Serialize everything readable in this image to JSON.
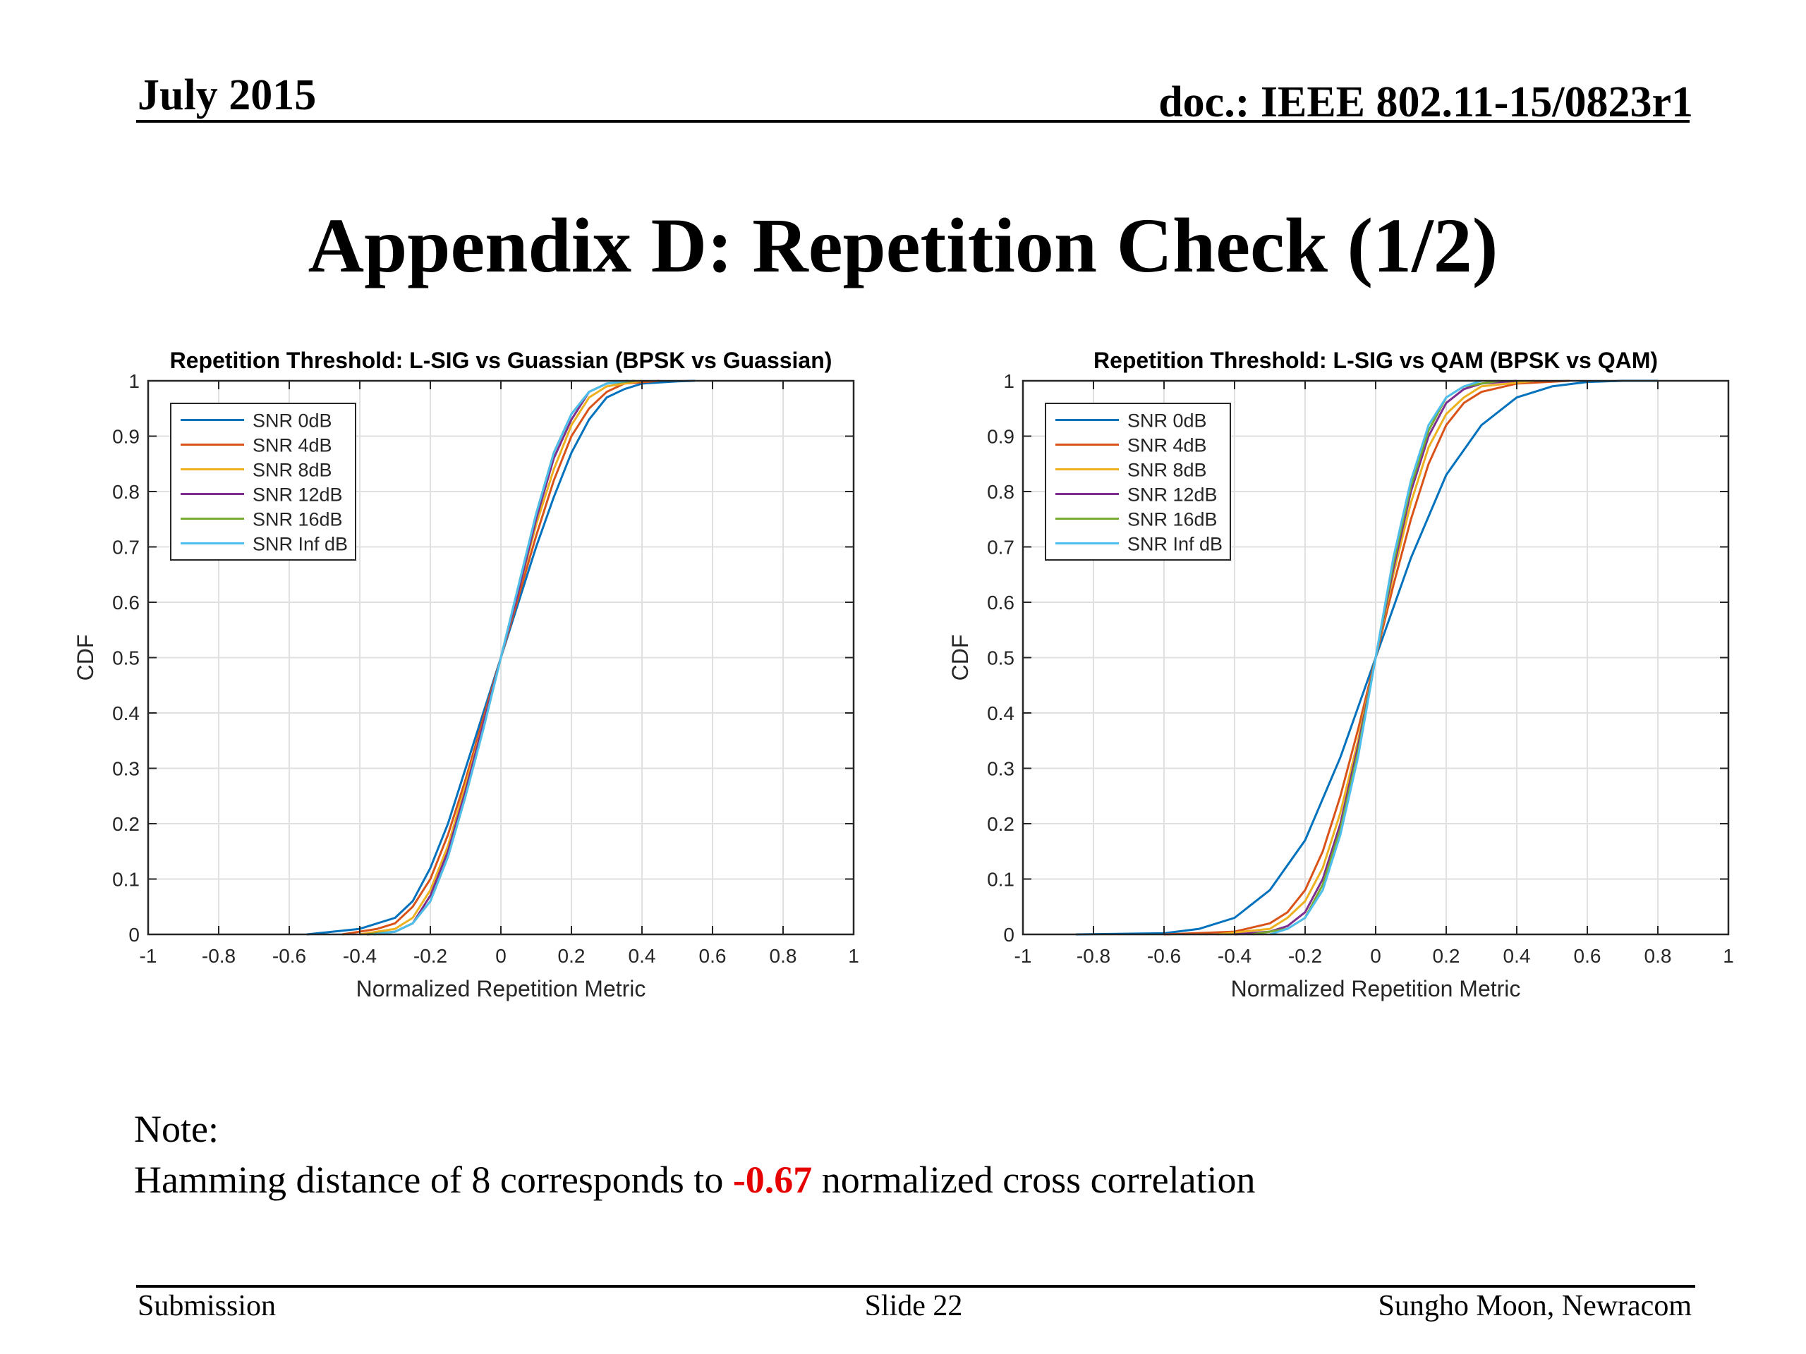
{
  "header": {
    "date": "July 2015",
    "doc": "doc.: IEEE 802.11-15/0823r1"
  },
  "slide_title": "Appendix D: Repetition Check (1/2)",
  "note": {
    "label": "Note:",
    "text_before": "Hamming distance of 8 corresponds to ",
    "highlight": "-0.67",
    "text_after": " normalized cross correlation",
    "highlight_color": "#e60000"
  },
  "footer": {
    "left": "Submission",
    "center": "Slide 22",
    "right": "Sungho Moon, Newracom"
  },
  "chart_data": [
    {
      "type": "line",
      "title": "Repetition Threshold: L-SIG vs Guassian (BPSK vs Guassian)",
      "xlabel": "Normalized Repetition Metric",
      "ylabel": "CDF",
      "xlim": [
        -1,
        1
      ],
      "ylim": [
        0,
        1
      ],
      "xticks": [
        "-1",
        "-0.8",
        "-0.6",
        "-0.4",
        "-0.2",
        "0",
        "0.2",
        "0.4",
        "0.6",
        "0.8",
        "1"
      ],
      "yticks": [
        "0",
        "0.1",
        "0.2",
        "0.3",
        "0.4",
        "0.5",
        "0.6",
        "0.7",
        "0.8",
        "0.9",
        "1"
      ],
      "grid": true,
      "legend_position": "top-left",
      "series": [
        {
          "name": "SNR 0dB",
          "color": "#0072bd",
          "x": [
            -0.55,
            -0.4,
            -0.3,
            -0.25,
            -0.2,
            -0.15,
            -0.1,
            -0.05,
            0,
            0.05,
            0.1,
            0.15,
            0.2,
            0.25,
            0.3,
            0.35,
            0.4,
            0.5,
            0.55
          ],
          "y": [
            0,
            0.01,
            0.03,
            0.06,
            0.12,
            0.2,
            0.3,
            0.4,
            0.5,
            0.6,
            0.7,
            0.79,
            0.87,
            0.93,
            0.97,
            0.985,
            0.995,
            0.999,
            1
          ]
        },
        {
          "name": "SNR 4dB",
          "color": "#d95319",
          "x": [
            -0.45,
            -0.35,
            -0.3,
            -0.25,
            -0.2,
            -0.15,
            -0.1,
            -0.05,
            0,
            0.05,
            0.1,
            0.15,
            0.2,
            0.25,
            0.3,
            0.35,
            0.45
          ],
          "y": [
            0,
            0.01,
            0.02,
            0.05,
            0.1,
            0.18,
            0.28,
            0.39,
            0.5,
            0.61,
            0.72,
            0.82,
            0.9,
            0.95,
            0.98,
            0.995,
            1
          ]
        },
        {
          "name": "SNR 8dB",
          "color": "#edb120",
          "x": [
            -0.4,
            -0.3,
            -0.25,
            -0.2,
            -0.15,
            -0.1,
            -0.05,
            0,
            0.05,
            0.1,
            0.15,
            0.2,
            0.25,
            0.3,
            0.4
          ],
          "y": [
            0,
            0.01,
            0.03,
            0.08,
            0.16,
            0.27,
            0.38,
            0.5,
            0.62,
            0.74,
            0.84,
            0.92,
            0.97,
            0.99,
            1
          ]
        },
        {
          "name": "SNR 12dB",
          "color": "#7e2f8e",
          "x": [
            -0.38,
            -0.3,
            -0.25,
            -0.2,
            -0.15,
            -0.1,
            -0.05,
            0,
            0.05,
            0.1,
            0.15,
            0.2,
            0.25,
            0.3,
            0.38
          ],
          "y": [
            0,
            0.005,
            0.02,
            0.07,
            0.15,
            0.26,
            0.38,
            0.5,
            0.62,
            0.75,
            0.86,
            0.93,
            0.98,
            0.995,
            1
          ]
        },
        {
          "name": "SNR 16dB",
          "color": "#77ac30",
          "x": [
            -0.38,
            -0.3,
            -0.25,
            -0.2,
            -0.15,
            -0.1,
            -0.05,
            0,
            0.05,
            0.1,
            0.15,
            0.2,
            0.25,
            0.3,
            0.38
          ],
          "y": [
            0,
            0.005,
            0.02,
            0.06,
            0.14,
            0.25,
            0.37,
            0.5,
            0.63,
            0.76,
            0.87,
            0.94,
            0.98,
            0.995,
            1
          ]
        },
        {
          "name": "SNR Inf dB",
          "color": "#4dbeee",
          "x": [
            -0.36,
            -0.3,
            -0.25,
            -0.2,
            -0.15,
            -0.1,
            -0.05,
            0,
            0.05,
            0.1,
            0.15,
            0.2,
            0.25,
            0.3,
            0.36
          ],
          "y": [
            0,
            0.005,
            0.02,
            0.06,
            0.14,
            0.25,
            0.37,
            0.5,
            0.63,
            0.76,
            0.87,
            0.94,
            0.98,
            0.995,
            1
          ]
        }
      ]
    },
    {
      "type": "line",
      "title": "Repetition Threshold: L-SIG vs QAM (BPSK vs QAM)",
      "xlabel": "Normalized Repetition Metric",
      "ylabel": "CDF",
      "xlim": [
        -1,
        1
      ],
      "ylim": [
        0,
        1
      ],
      "xticks": [
        "-1",
        "-0.8",
        "-0.6",
        "-0.4",
        "-0.2",
        "0",
        "0.2",
        "0.4",
        "0.6",
        "0.8",
        "1"
      ],
      "yticks": [
        "0",
        "0.1",
        "0.2",
        "0.3",
        "0.4",
        "0.5",
        "0.6",
        "0.7",
        "0.8",
        "0.9",
        "1"
      ],
      "grid": true,
      "legend_position": "top-left",
      "series": [
        {
          "name": "SNR 0dB",
          "color": "#0072bd",
          "x": [
            -0.85,
            -0.6,
            -0.5,
            -0.4,
            -0.3,
            -0.2,
            -0.1,
            0,
            0.1,
            0.2,
            0.3,
            0.4,
            0.5,
            0.6,
            0.7,
            0.8
          ],
          "y": [
            0,
            0.002,
            0.01,
            0.03,
            0.08,
            0.17,
            0.32,
            0.5,
            0.68,
            0.83,
            0.92,
            0.97,
            0.99,
            0.998,
            1,
            1
          ]
        },
        {
          "name": "SNR 4dB",
          "color": "#d95319",
          "x": [
            -0.6,
            -0.4,
            -0.3,
            -0.25,
            -0.2,
            -0.15,
            -0.1,
            -0.05,
            0,
            0.05,
            0.1,
            0.15,
            0.2,
            0.25,
            0.3,
            0.4,
            0.55
          ],
          "y": [
            0,
            0.005,
            0.02,
            0.04,
            0.08,
            0.15,
            0.25,
            0.37,
            0.5,
            0.63,
            0.75,
            0.85,
            0.92,
            0.96,
            0.98,
            0.995,
            1
          ]
        },
        {
          "name": "SNR 8dB",
          "color": "#edb120",
          "x": [
            -0.45,
            -0.3,
            -0.25,
            -0.2,
            -0.15,
            -0.1,
            -0.05,
            0,
            0.05,
            0.1,
            0.15,
            0.2,
            0.25,
            0.3,
            0.45
          ],
          "y": [
            0,
            0.01,
            0.03,
            0.06,
            0.12,
            0.22,
            0.35,
            0.5,
            0.65,
            0.78,
            0.88,
            0.94,
            0.97,
            0.99,
            1
          ]
        },
        {
          "name": "SNR 12dB",
          "color": "#7e2f8e",
          "x": [
            -0.4,
            -0.3,
            -0.25,
            -0.2,
            -0.15,
            -0.1,
            -0.05,
            0,
            0.05,
            0.1,
            0.15,
            0.2,
            0.25,
            0.3,
            0.4
          ],
          "y": [
            0,
            0.005,
            0.015,
            0.04,
            0.1,
            0.2,
            0.34,
            0.5,
            0.66,
            0.8,
            0.9,
            0.96,
            0.985,
            0.995,
            1
          ]
        },
        {
          "name": "SNR 16dB",
          "color": "#77ac30",
          "x": [
            -0.35,
            -0.25,
            -0.2,
            -0.15,
            -0.1,
            -0.05,
            0,
            0.05,
            0.1,
            0.15,
            0.2,
            0.25,
            0.35
          ],
          "y": [
            0,
            0.01,
            0.03,
            0.09,
            0.19,
            0.33,
            0.5,
            0.67,
            0.81,
            0.91,
            0.97,
            0.99,
            1
          ]
        },
        {
          "name": "SNR Inf dB",
          "color": "#4dbeee",
          "x": [
            -0.3,
            -0.25,
            -0.2,
            -0.15,
            -0.1,
            -0.05,
            0,
            0.05,
            0.1,
            0.15,
            0.2,
            0.25,
            0.3
          ],
          "y": [
            0,
            0.01,
            0.03,
            0.08,
            0.18,
            0.32,
            0.5,
            0.68,
            0.82,
            0.92,
            0.97,
            0.99,
            1
          ]
        }
      ]
    }
  ]
}
